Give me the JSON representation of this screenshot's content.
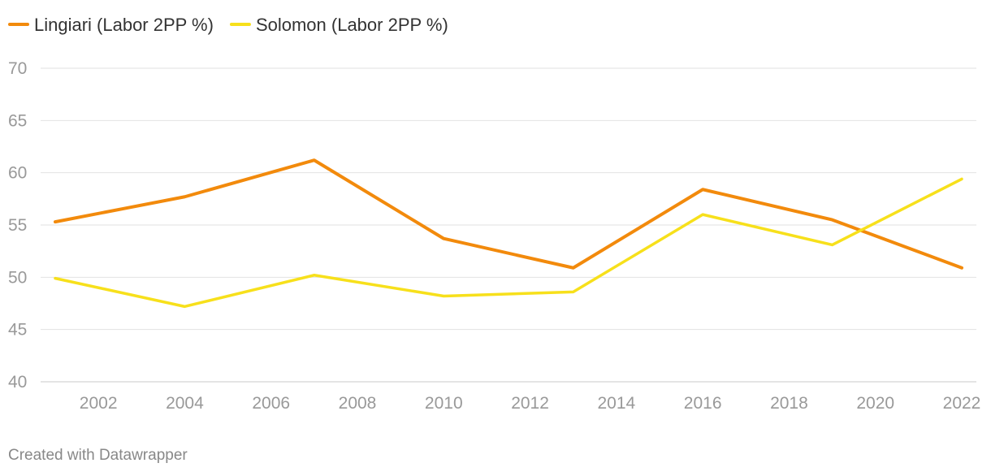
{
  "chart_data": {
    "type": "line",
    "x": [
      2001,
      2004,
      2007,
      2010,
      2013,
      2016,
      2019,
      2022
    ],
    "series": [
      {
        "name": "Lingiari (Labor 2PP %)",
        "color": "#f28a0c",
        "values": [
          55.3,
          57.7,
          61.2,
          53.7,
          50.9,
          58.4,
          55.5,
          50.9
        ]
      },
      {
        "name": "Solomon (Labor 2PP %)",
        "color": "#f7e01b",
        "values": [
          49.9,
          47.2,
          50.2,
          48.2,
          48.6,
          56.0,
          53.1,
          59.4
        ]
      }
    ],
    "xticks": [
      "2002",
      "2004",
      "2006",
      "2008",
      "2010",
      "2012",
      "2014",
      "2016",
      "2018",
      "2020",
      "2022"
    ],
    "yticks": [
      "40",
      "45",
      "50",
      "55",
      "60",
      "65",
      "70"
    ],
    "xlim": [
      2001,
      2022
    ],
    "ylim": [
      40,
      70
    ],
    "grid": "horizontal",
    "legend_position": "top-left",
    "title": "",
    "xlabel": "",
    "ylabel": ""
  },
  "footer": {
    "credit": "Created with Datawrapper"
  }
}
